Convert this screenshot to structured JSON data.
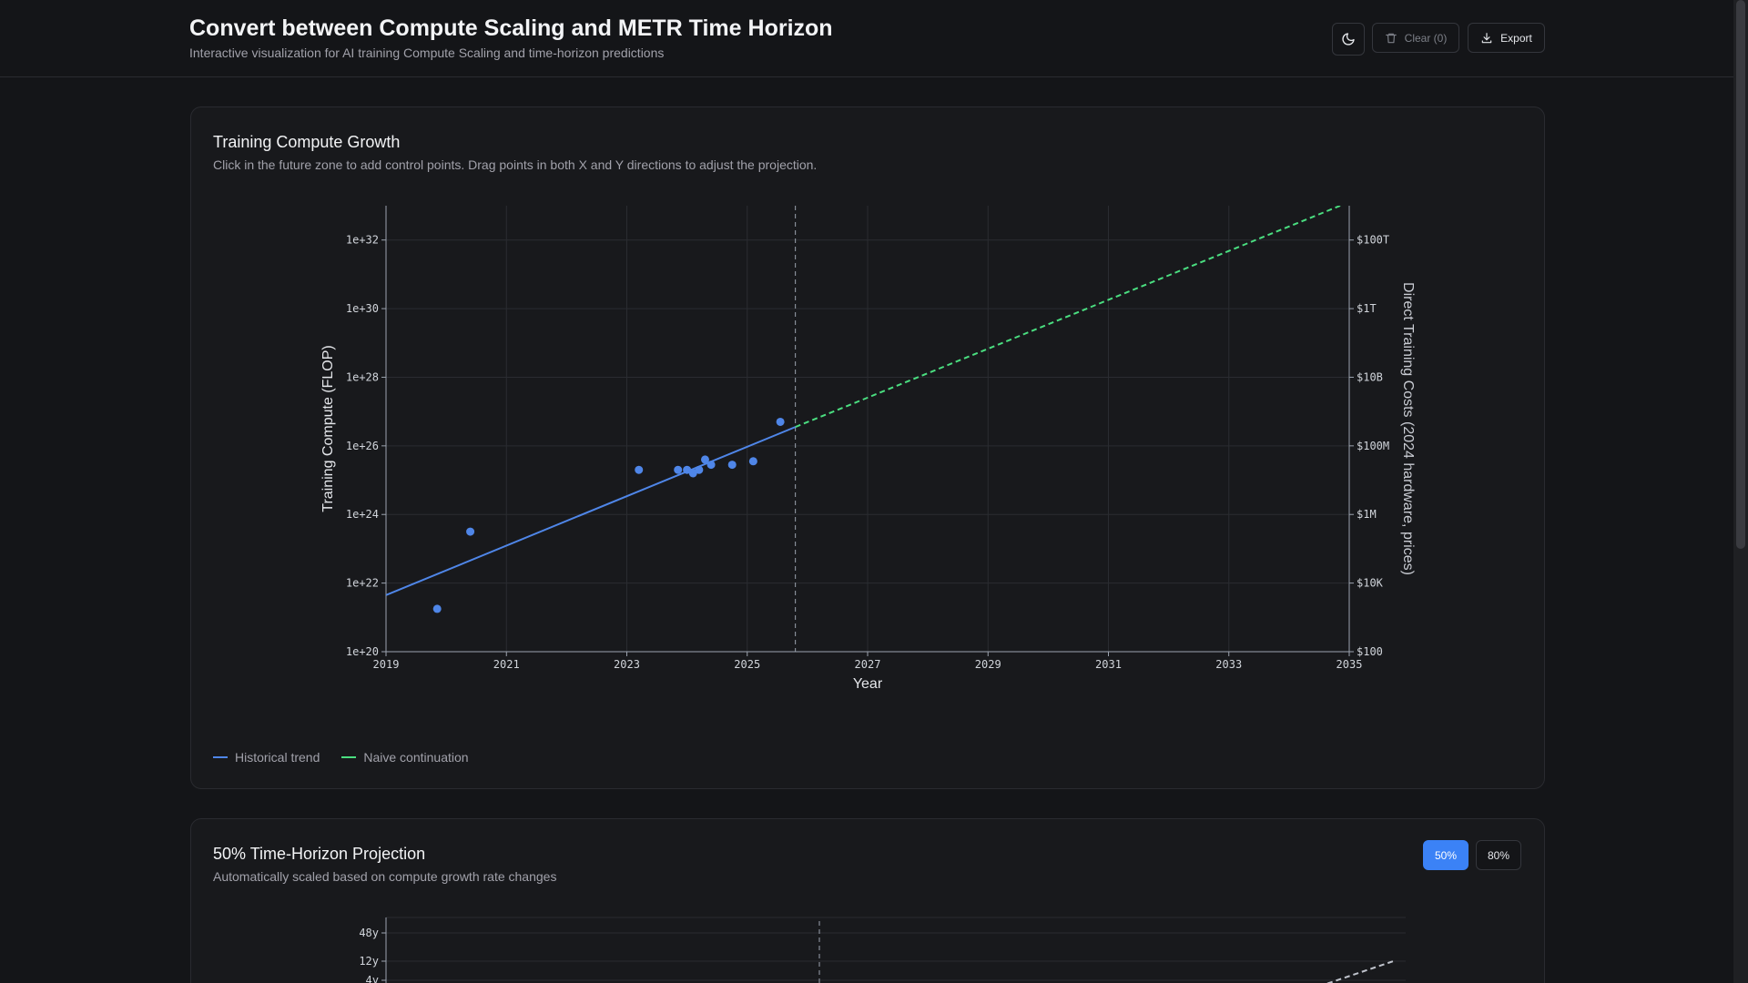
{
  "header": {
    "title": "Convert between Compute Scaling and METR Time Horizon",
    "subtitle": "Interactive visualization for AI training Compute Scaling and time-horizon predictions",
    "theme_icon": "moon-icon",
    "clear_label": "Clear (0)",
    "clear_icon": "trash-icon",
    "export_label": "Export",
    "export_icon": "download-icon"
  },
  "compute_card": {
    "title": "Training Compute Growth",
    "subtitle": "Click in the future zone to add control points. Drag points in both X and Y directions to adjust the projection.",
    "legend": [
      {
        "label": "Historical trend",
        "color": "#4f86e8"
      },
      {
        "label": "Naive continuation",
        "color": "#4ade80"
      }
    ]
  },
  "horizon_card": {
    "title": "50% Time-Horizon Projection",
    "subtitle": "Automatically scaled based on compute growth rate changes",
    "toggle": {
      "options": [
        "50%",
        "80%"
      ],
      "selected": "50%"
    }
  },
  "chart_data": [
    {
      "type": "scatter",
      "xlabel": "Year",
      "ylabel": "Training Compute (FLOP)",
      "y2label": "Direct Training Costs (2024 hardware, prices)",
      "xlim": [
        2019,
        2035
      ],
      "ylim_log10": [
        20,
        33
      ],
      "x_ticks": [
        "2019",
        "2021",
        "2023",
        "2025",
        "2027",
        "2029",
        "2031",
        "2033",
        "2035"
      ],
      "y_ticks": [
        "1e+20",
        "1e+22",
        "1e+24",
        "1e+26",
        "1e+28",
        "1e+30",
        "1e+32"
      ],
      "y2_ticks": [
        "$100",
        "$10K",
        "$1M",
        "$100M",
        "$10B",
        "$1T",
        "$100T"
      ],
      "log_scale": true,
      "grid": true,
      "present_year": 2025.8,
      "points": [
        {
          "x": 2019.85,
          "log10_y": 21.25
        },
        {
          "x": 2020.4,
          "log10_y": 23.5
        },
        {
          "x": 2023.2,
          "log10_y": 25.3
        },
        {
          "x": 2023.85,
          "log10_y": 25.3
        },
        {
          "x": 2024.0,
          "log10_y": 25.3
        },
        {
          "x": 2024.1,
          "log10_y": 25.2
        },
        {
          "x": 2024.2,
          "log10_y": 25.3
        },
        {
          "x": 2024.3,
          "log10_y": 25.6
        },
        {
          "x": 2024.4,
          "log10_y": 25.45
        },
        {
          "x": 2024.75,
          "log10_y": 25.45
        },
        {
          "x": 2025.1,
          "log10_y": 25.55
        },
        {
          "x": 2025.55,
          "log10_y": 26.7
        }
      ],
      "series": [
        {
          "name": "Historical trend",
          "x": [
            2019,
            2025.8
          ],
          "log10_y": [
            21.65,
            26.55
          ],
          "color": "#4f86e8",
          "style": "solid"
        },
        {
          "name": "Naive continuation",
          "x": [
            2025.8,
            2034.85
          ],
          "log10_y": [
            26.55,
            33.0
          ],
          "color": "#4ade80",
          "style": "dashed"
        }
      ]
    },
    {
      "type": "line",
      "xlabel": "",
      "ylabel": "",
      "y_ticks": [
        "48y",
        "12y",
        "4y"
      ],
      "grid": true,
      "present_year": 2025.8,
      "series": [
        {
          "x": [
            2033.5,
            2034.85
          ],
          "y_label_units": [
            "4y",
            "12y"
          ],
          "color": "#bfc3cc",
          "style": "dashed"
        }
      ]
    }
  ]
}
